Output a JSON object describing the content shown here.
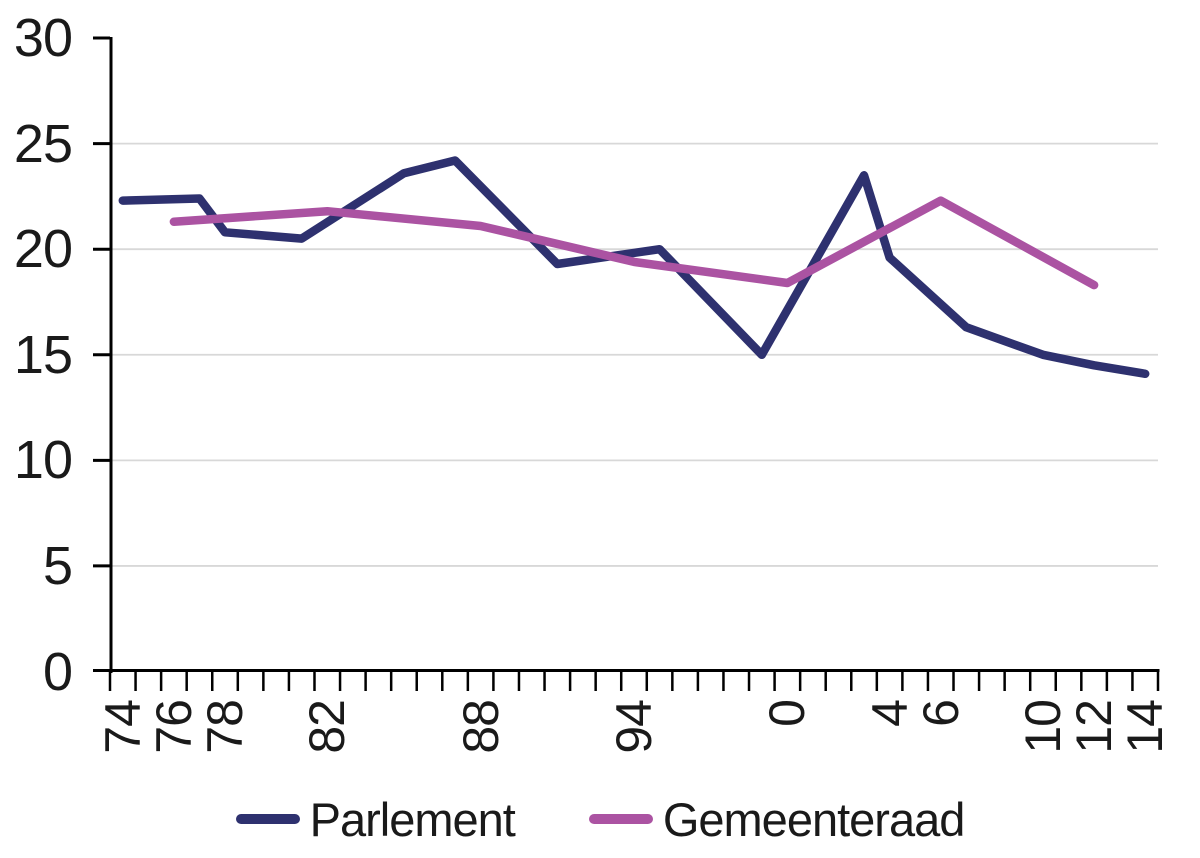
{
  "chart_data": {
    "type": "line",
    "title": "",
    "xlabel": "",
    "ylabel": "",
    "grid": "horizontal",
    "legend_position": "bottom",
    "x_axis": {
      "kind": "yearly categories",
      "first_year": 1974,
      "last_year": 2014,
      "tick_interval_years": 1,
      "tick_labels": [
        {
          "year": 1974,
          "label": "74"
        },
        {
          "year": 1976,
          "label": "76"
        },
        {
          "year": 1978,
          "label": "78"
        },
        {
          "year": 1982,
          "label": "82"
        },
        {
          "year": 1988,
          "label": "88"
        },
        {
          "year": 1994,
          "label": "94"
        },
        {
          "year": 2000,
          "label": "0"
        },
        {
          "year": 2004,
          "label": "4"
        },
        {
          "year": 2006,
          "label": "6"
        },
        {
          "year": 2010,
          "label": "10"
        },
        {
          "year": 2012,
          "label": "12"
        },
        {
          "year": 2014,
          "label": "14"
        }
      ]
    },
    "y_axis": {
      "min": 0,
      "max": 30,
      "tick_step": 5,
      "ticks": [
        0,
        5,
        10,
        15,
        20,
        25,
        30
      ]
    },
    "series": [
      {
        "name": "Parlement",
        "color": "#2E316F",
        "points": [
          [
            1974,
            22.3
          ],
          [
            1977,
            22.4
          ],
          [
            1978,
            20.8
          ],
          [
            1981,
            20.5
          ],
          [
            1985,
            23.6
          ],
          [
            1987,
            24.2
          ],
          [
            1991,
            19.3
          ],
          [
            1995,
            20.0
          ],
          [
            1999,
            15.0
          ],
          [
            2003,
            23.5
          ],
          [
            2004,
            19.6
          ],
          [
            2007,
            16.3
          ],
          [
            2010,
            15.0
          ],
          [
            2012,
            14.5
          ],
          [
            2014,
            14.1
          ]
        ]
      },
      {
        "name": "Gemeenteraad",
        "color": "#AB53A2",
        "points": [
          [
            1976,
            21.3
          ],
          [
            1982,
            21.8
          ],
          [
            1988,
            21.1
          ],
          [
            1994,
            19.4
          ],
          [
            2000,
            18.4
          ],
          [
            2006,
            22.3
          ],
          [
            2012,
            18.3
          ]
        ]
      }
    ],
    "colors": {
      "axis": "#000000",
      "gridline": "#D8D8D8",
      "text": "#1a1a1a"
    }
  }
}
